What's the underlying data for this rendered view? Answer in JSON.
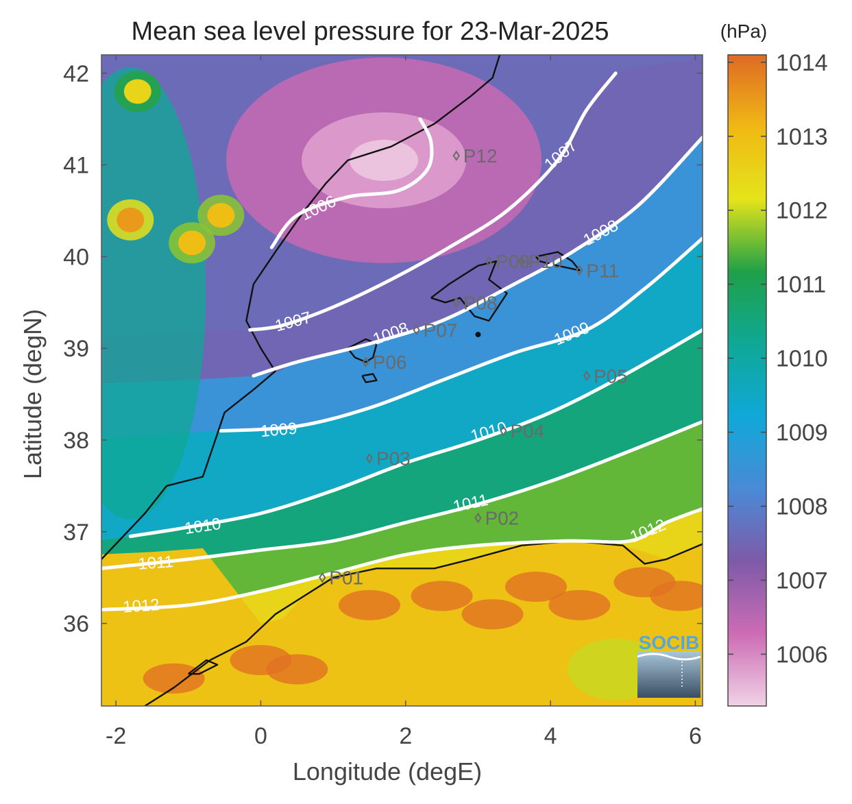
{
  "chart_data": {
    "type": "heatmap",
    "title": "Mean sea level pressure for 23-Mar-2025",
    "xlabel": "Longitude (degE)",
    "ylabel": "Latitude (degN)",
    "xlim": [
      -2.2,
      6.1
    ],
    "ylim": [
      35.1,
      42.2
    ],
    "xticks": [
      -2,
      0,
      2,
      4,
      6
    ],
    "yticks": [
      36,
      37,
      38,
      39,
      40,
      41,
      42
    ],
    "colorbar": {
      "unit": "(hPa)",
      "range": [
        1005.3,
        1014.1
      ],
      "ticks": [
        1006,
        1007,
        1008,
        1009,
        1010,
        1011,
        1012,
        1013,
        1014
      ],
      "colors": [
        "#f0d2e6",
        "#cc6cb4",
        "#7e5aa8",
        "#4a8ad6",
        "#10a8d8",
        "#0fa896",
        "#1fa048",
        "#e4e41a",
        "#f0b814",
        "#de6a24"
      ]
    },
    "contours": [
      {
        "level": "1006",
        "points": [
          [
            0.15,
            40.1
          ],
          [
            0.5,
            40.45
          ],
          [
            1.2,
            40.65
          ],
          [
            1.9,
            40.72
          ],
          [
            2.3,
            40.95
          ],
          [
            2.35,
            41.25
          ],
          [
            2.2,
            41.5
          ]
        ]
      },
      {
        "level": "1007",
        "points": [
          [
            -0.15,
            39.2
          ],
          [
            0.3,
            39.25
          ],
          [
            1.0,
            39.45
          ],
          [
            1.8,
            39.75
          ],
          [
            2.6,
            40.1
          ],
          [
            3.4,
            40.5
          ],
          [
            4.1,
            41.05
          ],
          [
            4.5,
            41.6
          ],
          [
            4.9,
            42.0
          ]
        ]
      },
      {
        "level": "1008",
        "points": [
          [
            -0.1,
            38.7
          ],
          [
            0.5,
            38.85
          ],
          [
            1.5,
            39.05
          ],
          [
            2.5,
            39.3
          ],
          [
            3.5,
            39.7
          ],
          [
            4.3,
            40.05
          ],
          [
            5.2,
            40.55
          ],
          [
            6.1,
            41.3
          ]
        ]
      },
      {
        "level": "1009",
        "points": [
          [
            -0.55,
            38.1
          ],
          [
            0.5,
            38.15
          ],
          [
            1.5,
            38.35
          ],
          [
            2.5,
            38.65
          ],
          [
            3.5,
            38.95
          ],
          [
            4.5,
            39.2
          ],
          [
            5.3,
            39.65
          ],
          [
            6.1,
            40.2
          ]
        ]
      },
      {
        "level": "1010",
        "points": [
          [
            -1.8,
            36.95
          ],
          [
            -1.0,
            37.05
          ],
          [
            0.0,
            37.2
          ],
          [
            1.0,
            37.45
          ],
          [
            2.0,
            37.75
          ],
          [
            3.0,
            38.0
          ],
          [
            4.0,
            38.3
          ],
          [
            5.0,
            38.7
          ],
          [
            6.1,
            39.2
          ]
        ]
      },
      {
        "level": "1011",
        "points": [
          [
            -2.2,
            36.6
          ],
          [
            -1.0,
            36.7
          ],
          [
            0.0,
            36.8
          ],
          [
            1.0,
            36.9
          ],
          [
            2.0,
            37.1
          ],
          [
            3.0,
            37.3
          ],
          [
            4.0,
            37.55
          ],
          [
            5.0,
            37.85
          ],
          [
            6.1,
            38.2
          ]
        ]
      },
      {
        "level": "1012",
        "points": [
          [
            -2.2,
            36.15
          ],
          [
            -1.0,
            36.2
          ],
          [
            0.0,
            36.35
          ],
          [
            1.0,
            36.55
          ],
          [
            2.0,
            36.75
          ],
          [
            3.0,
            36.85
          ],
          [
            4.2,
            36.9
          ],
          [
            5.1,
            36.9
          ],
          [
            5.6,
            37.1
          ],
          [
            6.1,
            37.25
          ]
        ]
      }
    ],
    "contour_labels": [
      {
        "text": "1006",
        "lon": 0.8,
        "lat": 40.52,
        "angle": -25
      },
      {
        "text": "1007",
        "lon": 0.45,
        "lat": 39.28,
        "angle": -15
      },
      {
        "text": "1007",
        "lon": 4.15,
        "lat": 41.1,
        "angle": -40
      },
      {
        "text": "1008",
        "lon": 1.8,
        "lat": 39.15,
        "angle": -20
      },
      {
        "text": "1008",
        "lon": 4.7,
        "lat": 40.25,
        "angle": -28
      },
      {
        "text": "1009",
        "lon": 0.25,
        "lat": 38.1,
        "angle": -5
      },
      {
        "text": "1009",
        "lon": 4.3,
        "lat": 39.15,
        "angle": -22
      },
      {
        "text": "1010",
        "lon": -0.8,
        "lat": 37.05,
        "angle": -8
      },
      {
        "text": "1010",
        "lon": 3.15,
        "lat": 38.08,
        "angle": -15
      },
      {
        "text": "1011",
        "lon": -1.45,
        "lat": 36.65,
        "angle": -4
      },
      {
        "text": "1011",
        "lon": 2.9,
        "lat": 37.3,
        "angle": -12
      },
      {
        "text": "1012",
        "lon": -1.65,
        "lat": 36.18,
        "angle": -4
      },
      {
        "text": "1012",
        "lon": 5.35,
        "lat": 37.0,
        "angle": -22
      }
    ],
    "stations": [
      {
        "name": "P01",
        "lon": 0.85,
        "lat": 36.5
      },
      {
        "name": "P02",
        "lon": 3.0,
        "lat": 37.15
      },
      {
        "name": "P03",
        "lon": 1.5,
        "lat": 37.8
      },
      {
        "name": "P04",
        "lon": 3.35,
        "lat": 38.1
      },
      {
        "name": "P05",
        "lon": 4.5,
        "lat": 38.7
      },
      {
        "name": "P06",
        "lon": 1.45,
        "lat": 38.85
      },
      {
        "name": "P07",
        "lon": 2.15,
        "lat": 39.2
      },
      {
        "name": "P08",
        "lon": 2.7,
        "lat": 39.5
      },
      {
        "name": "P09",
        "lon": 3.15,
        "lat": 39.95
      },
      {
        "name": "P10",
        "lon": 3.6,
        "lat": 39.95
      },
      {
        "name": "P11",
        "lon": 4.4,
        "lat": 39.85
      },
      {
        "name": "P12",
        "lon": 2.7,
        "lat": 41.1
      }
    ],
    "pressure_field": {
      "description_levels": "isobars listed in contours",
      "low_center": {
        "lon": 1.7,
        "lat": 41.05,
        "value": 1005.4
      },
      "high_hotspots": [
        {
          "lon": -1.8,
          "lat": 40.4,
          "value": 1013.5
        },
        {
          "lon": -0.55,
          "lat": 40.45,
          "value": 1013.0
        },
        {
          "lon": -0.95,
          "lat": 40.15,
          "value": 1013.0
        },
        {
          "lon": -1.7,
          "lat": 41.8,
          "value": 1012.5
        }
      ]
    }
  },
  "logo": {
    "text": "SOCIB"
  },
  "colors": {
    "contour": "#ffffff",
    "coast": "#111111",
    "station": "#6a6a6a",
    "frame": "#555555"
  }
}
